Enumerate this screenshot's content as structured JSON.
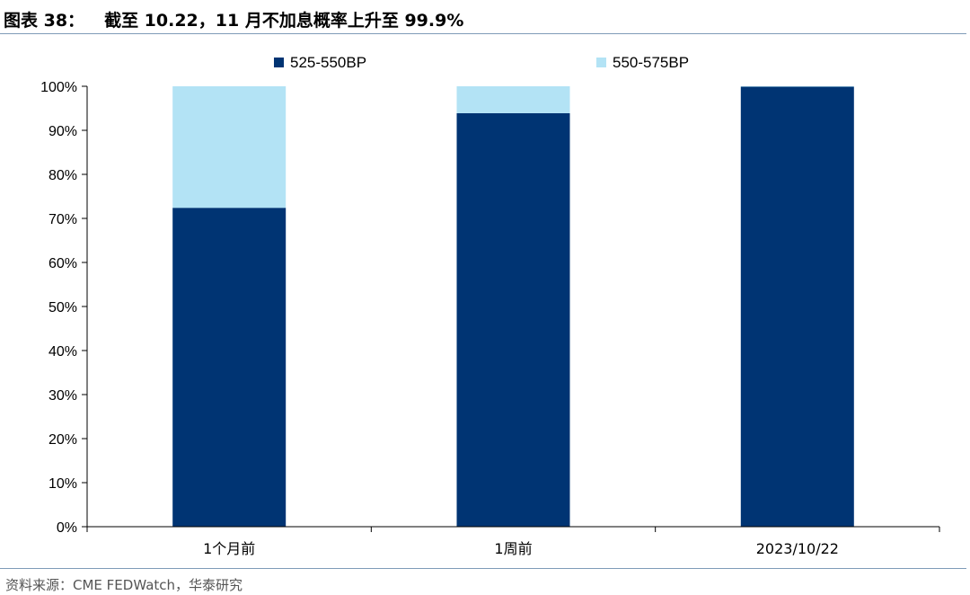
{
  "header": {
    "figure_label": "图表 38：",
    "title": "截至 10.22，11 月不加息概率上升至 99.9%"
  },
  "footer": {
    "source": "资料来源：CME FEDWatch，华泰研究"
  },
  "chart_data": {
    "type": "bar",
    "stacked": true,
    "categories": [
      "1个月前",
      "1周前",
      "2023/10/22"
    ],
    "series": [
      {
        "name": "525-550BP",
        "color": "#003473",
        "values": [
          72.4,
          93.9,
          99.9
        ]
      },
      {
        "name": "550-575BP",
        "color": "#b3e3f5",
        "values": [
          27.6,
          6.1,
          0.1
        ]
      }
    ],
    "yticks": [
      "0%",
      "10%",
      "20%",
      "30%",
      "40%",
      "50%",
      "60%",
      "70%",
      "80%",
      "90%",
      "100%"
    ],
    "ylim": [
      0,
      100
    ],
    "grid": false,
    "legend_position": "top"
  }
}
